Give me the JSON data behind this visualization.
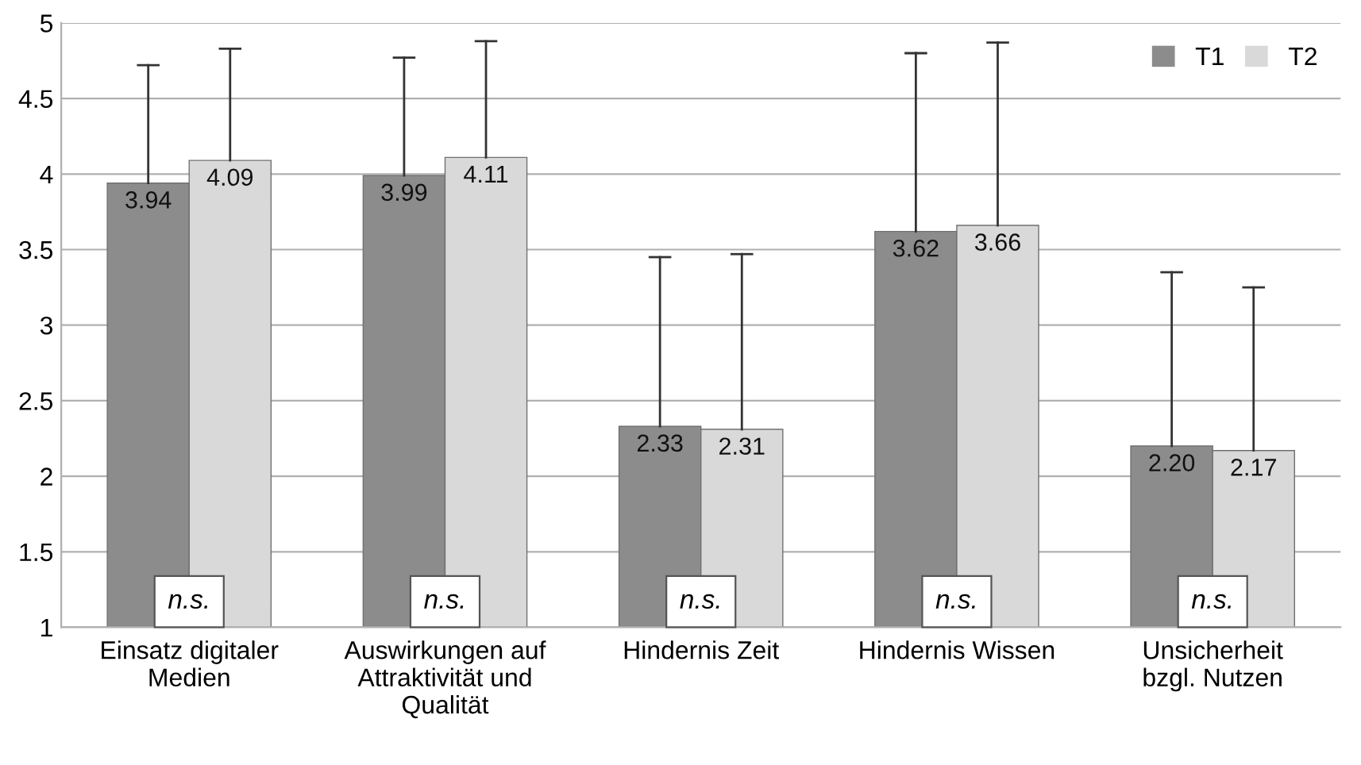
{
  "chart_data": {
    "type": "bar",
    "categories": [
      "Einsatz digitaler\nMedien",
      "Auswirkungen auf\nAttraktivität und\nQualität",
      "Hindernis Zeit",
      "Hindernis Wissen",
      "Unsicherheit\nbzgl. Nutzen"
    ],
    "series": [
      {
        "name": "T1",
        "color": "#8c8c8c",
        "values": [
          3.94,
          3.99,
          2.33,
          3.62,
          2.2
        ],
        "value_labels": [
          "3.94",
          "3.99",
          "2.33",
          "3.62",
          "2.20"
        ],
        "errors": [
          [
            3.94,
            4.72
          ],
          [
            3.99,
            4.77
          ],
          [
            2.33,
            3.45
          ],
          [
            3.62,
            4.8
          ],
          [
            2.2,
            3.35
          ]
        ]
      },
      {
        "name": "T2",
        "color": "#d9d9d9",
        "values": [
          4.09,
          4.11,
          2.31,
          3.66,
          2.17
        ],
        "value_labels": [
          "4.09",
          "4.11",
          "2.31",
          "3.66",
          "2.17"
        ],
        "errors": [
          [
            4.09,
            4.83
          ],
          [
            4.11,
            4.88
          ],
          [
            2.31,
            3.47
          ],
          [
            3.66,
            4.87
          ],
          [
            2.17,
            3.25
          ]
        ]
      }
    ],
    "ylim": [
      1,
      5
    ],
    "yticks": [
      1,
      1.5,
      2,
      2.5,
      3,
      3.5,
      4,
      4.5,
      5
    ],
    "grid": "y",
    "legend": "top right",
    "annotations": [
      "n.s.",
      "n.s.",
      "n.s.",
      "n.s.",
      "n.s."
    ]
  }
}
